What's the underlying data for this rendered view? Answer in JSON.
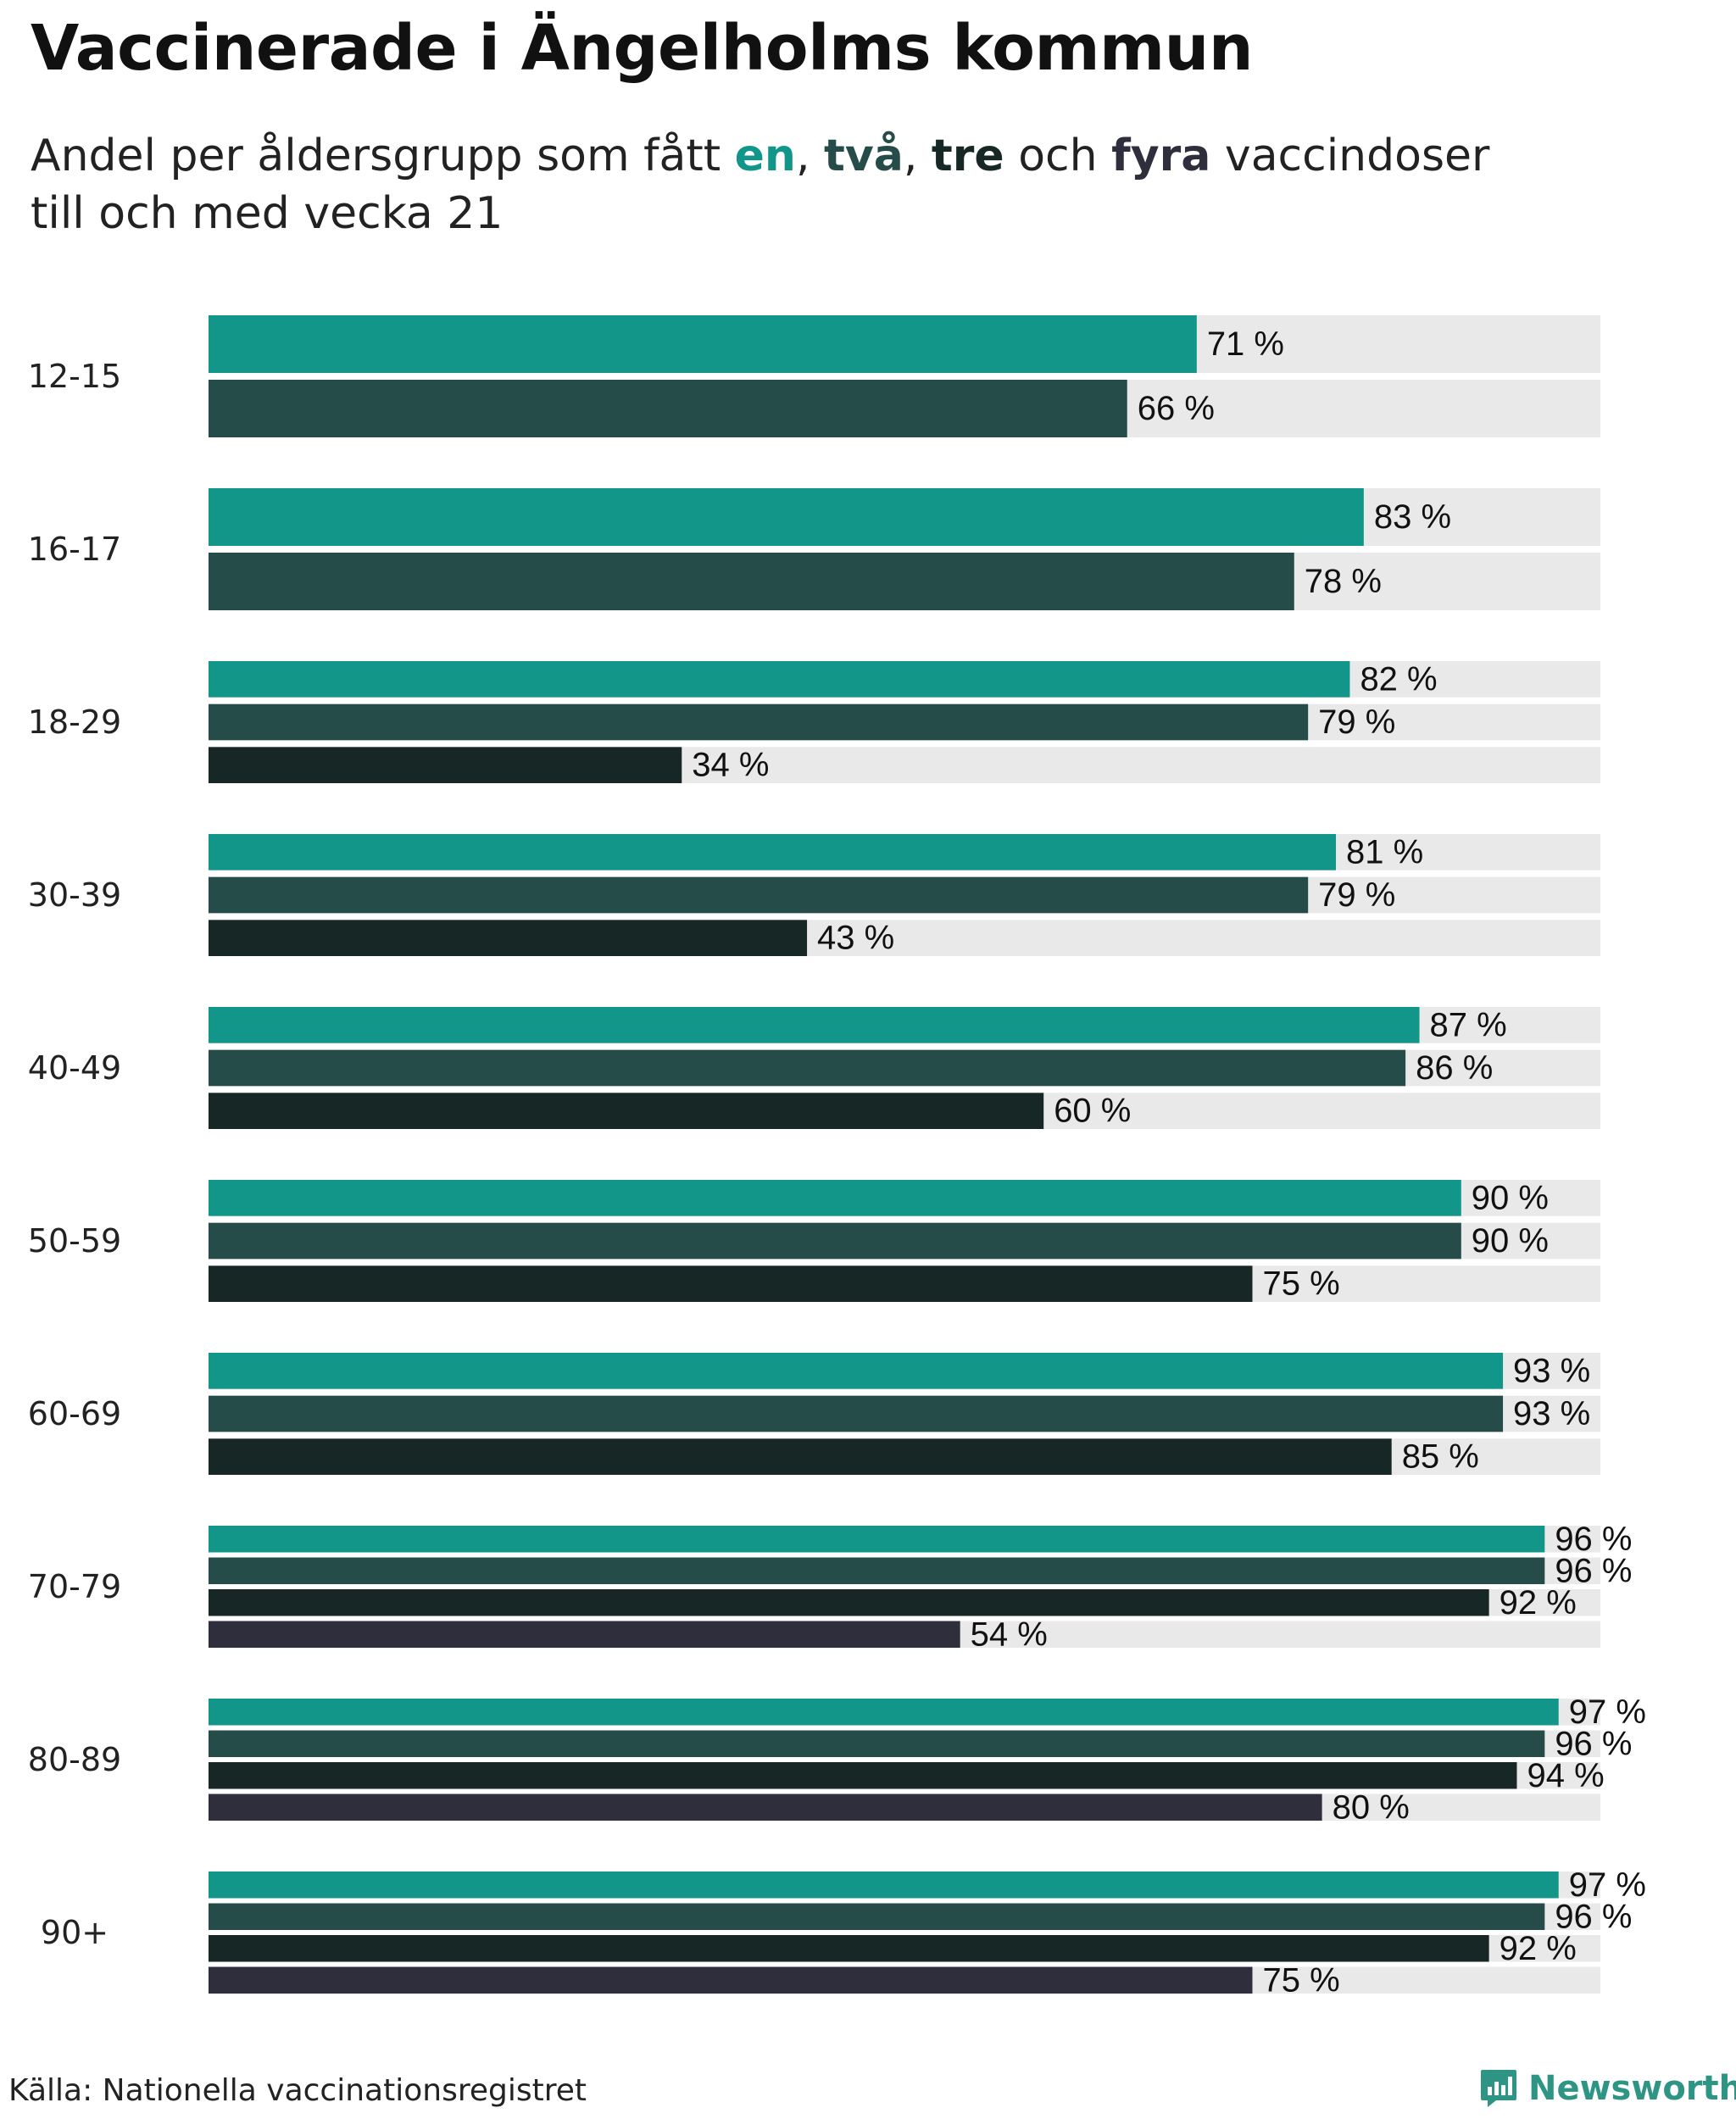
{
  "title": "Vaccinerade i Ängelholms kommun",
  "subtitle": {
    "prefix": "Andel per åldersgrupp som fått ",
    "dose1": "en",
    "sep1": ", ",
    "dose2": "två",
    "sep2": ", ",
    "dose3": "tre",
    "mid": " och ",
    "dose4": "fyra",
    "line1_suffix": " vaccindoser",
    "line2": "till och med vecka 21"
  },
  "colors": {
    "dose1": "#13968a",
    "dose2": "#264c4a",
    "dose3": "#172725",
    "dose4": "#2f2e3c",
    "track": "#e9e9e9",
    "brand": "#2e9585"
  },
  "chart_data": {
    "type": "bar",
    "orientation": "horizontal",
    "xlim": [
      0,
      100
    ],
    "value_suffix": " %",
    "series_names": [
      "en",
      "två",
      "tre",
      "fyra"
    ],
    "groups": [
      {
        "label": "12-15",
        "values": [
          71,
          66
        ]
      },
      {
        "label": "16-17",
        "values": [
          83,
          78
        ]
      },
      {
        "label": "18-29",
        "values": [
          82,
          79,
          34
        ]
      },
      {
        "label": "30-39",
        "values": [
          81,
          79,
          43
        ]
      },
      {
        "label": "40-49",
        "values": [
          87,
          86,
          60
        ]
      },
      {
        "label": "50-59",
        "values": [
          90,
          90,
          75
        ]
      },
      {
        "label": "60-69",
        "values": [
          93,
          93,
          85
        ]
      },
      {
        "label": "70-79",
        "values": [
          96,
          96,
          92,
          54
        ]
      },
      {
        "label": "80-89",
        "values": [
          97,
          96,
          94,
          80
        ]
      },
      {
        "label": "90+",
        "values": [
          97,
          96,
          92,
          75
        ]
      }
    ]
  },
  "footer": {
    "source": "Källa: Nationella vaccinationsregistret",
    "brand": "Newsworthy",
    "brand_icon": "newsworthy-logo-icon"
  }
}
